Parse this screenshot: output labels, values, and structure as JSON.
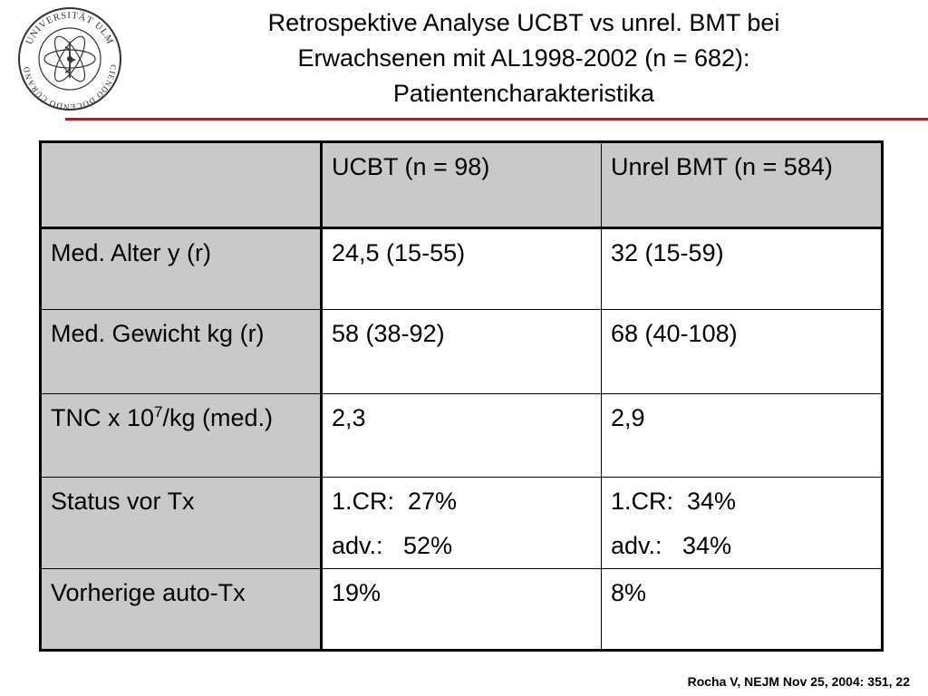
{
  "logo": {
    "text_top": "UNIVERSITÄT ULM",
    "text_bottom": "SCIENDO DOCENDO CURANDO"
  },
  "title": {
    "line1": "Retrospektive Analyse UCBT vs unrel. BMT bei",
    "line2": "Erwachsenen mit AL1998-2002 (n = 682):",
    "line3": "Patientencharakteristika"
  },
  "table": {
    "header": {
      "corner": "",
      "col1": "UCBT (n = 98)",
      "col2": "Unrel BMT (n = 584)"
    },
    "rows": [
      {
        "label": "Med. Alter y (r)",
        "ucbt": "24,5 (15-55)",
        "bmt": "32 (15-59)"
      },
      {
        "label": "Med. Gewicht kg (r)",
        "ucbt": "58 (38-92)",
        "bmt": "68 (40-108)"
      },
      {
        "label_pre": "TNC x 10",
        "label_sup": "7",
        "label_post": "/kg (med.)",
        "ucbt": "2,3",
        "bmt": "2,9"
      },
      {
        "label": "Status vor Tx",
        "ucbt_1": "1.CR:  27%",
        "ucbt_2": "adv.:   52%",
        "bmt_1": "1.CR:  34%",
        "bmt_2": "adv.:   34%"
      },
      {
        "label": "Vorherige auto-Tx",
        "ucbt": "19%",
        "bmt": "8%"
      }
    ]
  },
  "citation": "Rocha V, NEJM Nov 25, 2004: 351, 22",
  "colors": {
    "accent_rule": "#a0242c",
    "header_fill": "#c9c9c9"
  }
}
